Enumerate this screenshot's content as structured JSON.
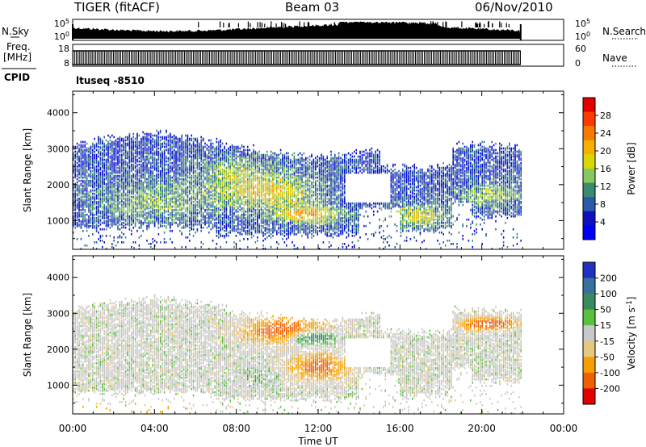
{
  "header": {
    "radar": "TIGER (fitACF)",
    "beam": "Beam 03",
    "date": "06/Nov/2010"
  },
  "panels": {
    "nsky": {
      "left_label": "N.Sky",
      "right_label": "N.Search",
      "left_ticks": [
        "10^5",
        "10^0"
      ],
      "right_ticks": [
        "10^5",
        "10^0"
      ]
    },
    "freq": {
      "left_label_1": "Freq.",
      "left_label_2": "[MHz]",
      "cpid_label": "CPID",
      "right_label": "Nave",
      "left_ticks": [
        "18",
        "8"
      ],
      "right_ticks": [
        "60",
        "0"
      ]
    },
    "cpid_text": "ltuseq -8510"
  },
  "chart_data": [
    {
      "type": "heatmap",
      "name": "power",
      "ylabel": "Slant Range [km]",
      "y_ticks": [
        1000,
        2000,
        3000,
        4000
      ],
      "ylim": [
        200,
        4600
      ],
      "xlim": [
        0,
        24
      ],
      "colorbar_label": "Power [dB]",
      "colorbar_ticks": [
        "28",
        "24",
        "20",
        "16",
        "12",
        "8",
        "4"
      ],
      "colorbar_colors": [
        "#e00000",
        "#ff3a00",
        "#f77a00",
        "#f5b100",
        "#d8d800",
        "#88c860",
        "#3a8a70",
        "#2a5aa8",
        "#1010c0",
        "#0000f5"
      ],
      "data_end_hour": 21.9
    },
    {
      "type": "heatmap",
      "name": "velocity",
      "ylabel": "Slant Range [km]",
      "y_ticks": [
        1000,
        2000,
        3000,
        4000
      ],
      "ylim": [
        200,
        4600
      ],
      "xlim": [
        0,
        24
      ],
      "colorbar_label": "Velocity [m s^-1]",
      "colorbar_ticks": [
        "200",
        "100",
        "50",
        "15",
        "-15",
        "-50",
        "-100",
        "-200"
      ],
      "colorbar_colors": [
        "#2030c0",
        "#3a70a0",
        "#3a8a60",
        "#5ac040",
        "#c8c8c8",
        "#e8c880",
        "#f5a000",
        "#f06000",
        "#e00000"
      ],
      "data_end_hour": 21.9
    }
  ],
  "x_axis": {
    "title": "Time UT",
    "ticks": [
      "00:00",
      "04:00",
      "08:00",
      "12:00",
      "16:00",
      "20:00",
      "00:00"
    ]
  }
}
